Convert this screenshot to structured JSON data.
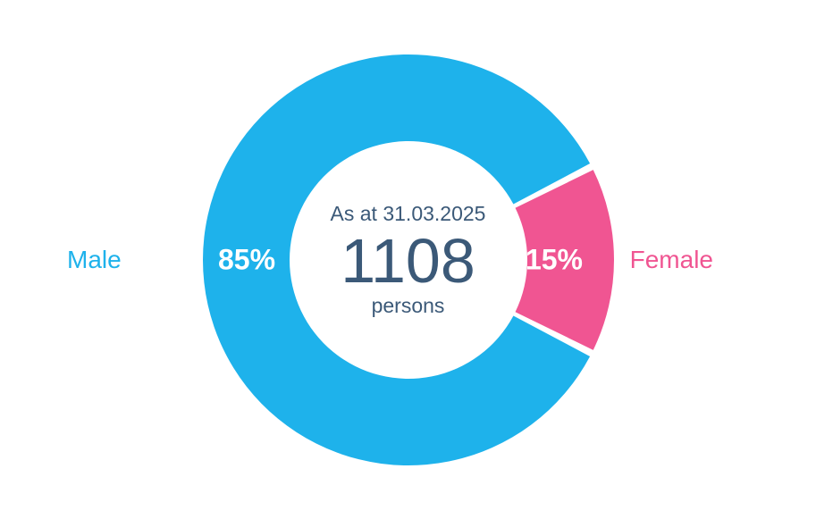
{
  "chart": {
    "type": "donut",
    "outer_radius": 230,
    "inner_radius": 133,
    "gap_degrees": 2,
    "background_color": "#ffffff",
    "slices": [
      {
        "key": "male",
        "label": "Male",
        "value": 85,
        "percent_text": "85%",
        "color": "#1eb2eb",
        "label_color": "#1eb2eb"
      },
      {
        "key": "female",
        "label": "Female",
        "value": 15,
        "percent_text": "15%",
        "color": "#f05592",
        "label_color": "#f05592"
      }
    ],
    "center": {
      "date_label": "As at 31.03.2025",
      "value": "1108",
      "unit": "persons",
      "text_color": "#3b5978"
    },
    "pct_text_color": "#ffffff",
    "pct_fontsize": 32,
    "pct_fontweight": "bold",
    "label_fontsize": 28,
    "center_date_fontsize": 23,
    "center_value_fontsize": 70,
    "center_unit_fontsize": 23
  }
}
